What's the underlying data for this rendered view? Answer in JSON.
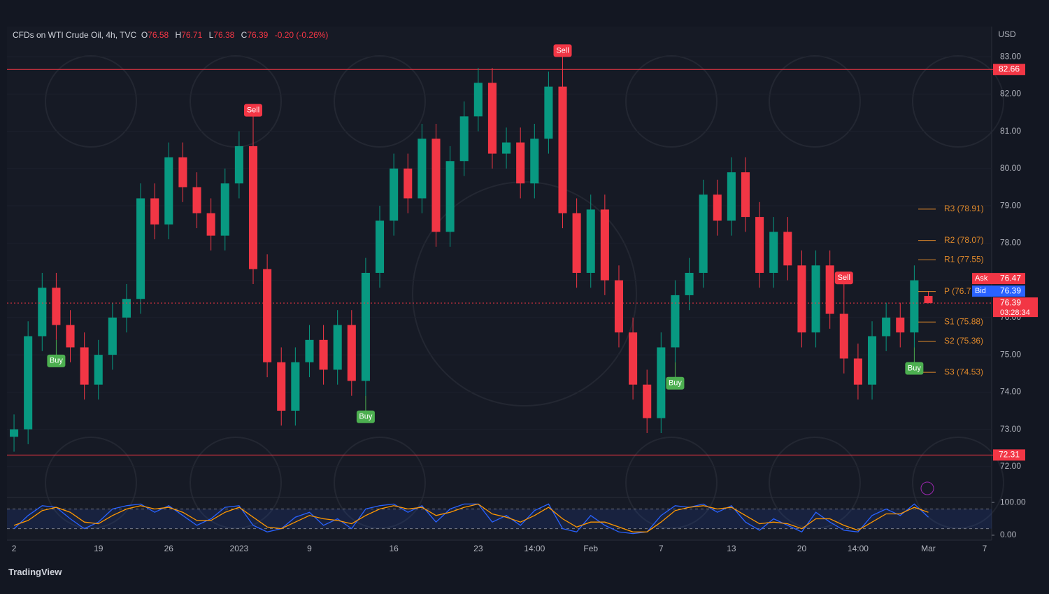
{
  "chart_data": {
    "type": "candlestick",
    "title": "CFDs on WTI Crude Oil, 4h, TVC",
    "ohlc_labels": [
      "O",
      "H",
      "L",
      "C"
    ],
    "change": "-0.20 (-0.26%)",
    "currency": "USD",
    "brand": "TradingView",
    "categories": [
      "2",
      null,
      null,
      null,
      null,
      null,
      "19",
      null,
      null,
      null,
      null,
      "26",
      null,
      null,
      null,
      null,
      "2023",
      null,
      null,
      null,
      null,
      "9",
      null,
      null,
      null,
      null,
      null,
      "16",
      null,
      null,
      null,
      null,
      null,
      "23",
      null,
      null,
      null,
      "14:00",
      null,
      null,
      null,
      "Feb",
      null,
      null,
      null,
      null,
      "7",
      null,
      null,
      null,
      null,
      "13",
      null,
      null,
      null,
      null,
      "20",
      null,
      null,
      null,
      "14:00",
      null,
      null,
      null,
      null,
      "Mar",
      null,
      null,
      null,
      "7"
    ],
    "open": [
      72.8,
      73.0,
      75.5,
      76.8,
      75.8,
      75.2,
      74.2,
      75.0,
      76.0,
      76.5,
      79.2,
      78.5,
      80.3,
      79.5,
      78.8,
      78.2,
      79.6,
      80.6,
      77.3,
      74.8,
      73.5,
      74.8,
      75.4,
      74.6,
      75.8,
      74.3,
      77.2,
      78.6,
      80.0,
      79.2,
      80.8,
      78.3,
      80.2,
      81.4,
      82.3,
      80.4,
      80.7,
      79.6,
      80.8,
      82.2,
      78.8,
      77.2,
      78.9,
      77.0,
      75.6,
      74.2,
      73.3,
      75.2,
      76.6,
      77.2,
      79.3,
      78.6,
      79.9,
      78.7,
      77.2,
      78.3,
      77.4,
      75.6,
      77.4,
      76.1,
      74.9,
      74.2,
      75.5,
      76.0,
      75.6,
      76.58,
      null,
      null,
      null,
      null
    ],
    "high": [
      73.4,
      75.9,
      77.2,
      77.2,
      76.2,
      75.6,
      75.4,
      76.4,
      76.9,
      79.6,
      79.6,
      80.7,
      80.7,
      79.9,
      79.2,
      80.0,
      81.0,
      81.0,
      77.7,
      75.2,
      75.2,
      75.8,
      75.8,
      76.2,
      76.2,
      77.6,
      79.0,
      80.4,
      80.4,
      81.2,
      81.2,
      80.6,
      81.8,
      82.7,
      82.7,
      81.1,
      81.1,
      81.2,
      82.6,
      82.6,
      79.2,
      79.3,
      79.3,
      77.4,
      76.0,
      74.6,
      75.6,
      77.0,
      77.6,
      79.7,
      79.7,
      80.3,
      80.3,
      79.1,
      78.7,
      78.7,
      77.8,
      77.8,
      77.8,
      76.5,
      75.3,
      75.9,
      76.4,
      76.4,
      77.4,
      76.71,
      null,
      null,
      null,
      null
    ],
    "low": [
      72.4,
      72.6,
      75.1,
      75.4,
      74.8,
      73.8,
      73.8,
      74.6,
      75.6,
      76.1,
      78.1,
      78.1,
      79.1,
      78.4,
      77.8,
      77.8,
      79.2,
      76.9,
      74.4,
      73.1,
      73.1,
      74.4,
      74.2,
      74.2,
      73.9,
      73.9,
      76.8,
      78.2,
      78.8,
      78.8,
      77.9,
      77.9,
      79.8,
      81.0,
      80.0,
      80.0,
      79.2,
      79.2,
      80.4,
      78.4,
      76.8,
      76.8,
      76.6,
      75.2,
      73.8,
      72.9,
      72.9,
      74.8,
      76.2,
      76.8,
      78.2,
      78.2,
      78.3,
      76.8,
      76.8,
      77.0,
      75.2,
      75.2,
      75.7,
      74.5,
      73.8,
      73.8,
      75.1,
      75.2,
      75.2,
      76.38,
      null,
      null,
      null,
      null
    ],
    "close": [
      73.0,
      75.5,
      76.8,
      75.8,
      75.2,
      74.2,
      75.0,
      76.0,
      76.5,
      79.2,
      78.5,
      80.3,
      79.5,
      78.8,
      78.2,
      79.6,
      80.6,
      77.3,
      74.8,
      73.5,
      74.8,
      75.4,
      74.6,
      75.8,
      74.3,
      77.2,
      78.6,
      80.0,
      79.2,
      80.8,
      78.3,
      80.2,
      81.4,
      82.3,
      80.4,
      80.7,
      79.6,
      80.8,
      82.2,
      78.8,
      77.2,
      78.9,
      77.0,
      75.6,
      74.2,
      73.3,
      75.2,
      76.6,
      77.2,
      79.3,
      78.6,
      79.9,
      78.7,
      77.2,
      78.3,
      77.4,
      75.6,
      77.4,
      76.1,
      74.9,
      74.2,
      75.5,
      76.0,
      75.6,
      77.0,
      76.39,
      null,
      null,
      null,
      null
    ],
    "up_color": "#089981",
    "down_color": "#f23645",
    "ylim": [
      71.19,
      83.81
    ],
    "yticks": [
      {
        "value": 72,
        "label": "72.00"
      },
      {
        "value": 73,
        "label": "73.00"
      },
      {
        "value": 74,
        "label": "74.00"
      },
      {
        "value": 75,
        "label": "75.00"
      },
      {
        "value": 76,
        "label": "76.00"
      },
      {
        "value": 77,
        "label": "77.00"
      },
      {
        "value": 78,
        "label": "78.00"
      },
      {
        "value": 79,
        "label": "79.00"
      },
      {
        "value": 80,
        "label": "80.00"
      },
      {
        "value": 81,
        "label": "81.00"
      },
      {
        "value": 82,
        "label": "82.00"
      },
      {
        "value": 83,
        "label": "83.00"
      }
    ],
    "levels": [
      82.66,
      72.31
    ],
    "pivots": [
      {
        "value": 78.91,
        "label": "R3 (78.91)"
      },
      {
        "value": 78.07,
        "label": "R2 (78.07)"
      },
      {
        "value": 77.55,
        "label": "R1 (77.55)"
      },
      {
        "value": 76.7,
        "label": "P (76.7"
      },
      {
        "value": 75.88,
        "label": "S1 (75.88)"
      },
      {
        "value": 75.36,
        "label": "S2 (75.36)"
      },
      {
        "value": 74.53,
        "label": "S3 (74.53)"
      }
    ],
    "ask": {
      "label": "Ask",
      "value": 76.47
    },
    "bid": {
      "label": "Bid",
      "value": 76.39
    },
    "countdown": "03:28:34",
    "signals": [
      {
        "label": "Buy",
        "candle": 3
      },
      {
        "label": "Sell",
        "candle": 17
      },
      {
        "label": "Buy",
        "candle": 25
      },
      {
        "label": "Sell",
        "candle": 39
      },
      {
        "label": "Buy",
        "candle": 47
      },
      {
        "label": "Sell",
        "candle": 59
      },
      {
        "label": "Buy",
        "candle": 64
      }
    ],
    "oscillator": {
      "ylim": [
        -15,
        113
      ],
      "yticks": [
        {
          "value": 100,
          "label": "100.00"
        },
        {
          "value": 0,
          "label": "0.00"
        }
      ],
      "bands": [
        20,
        80
      ],
      "series": [
        {
          "color": "#2962ff",
          "values": [
            20,
            60,
            90,
            85,
            50,
            20,
            40,
            80,
            90,
            95,
            70,
            90,
            60,
            30,
            50,
            85,
            90,
            30,
            10,
            20,
            55,
            70,
            30,
            50,
            20,
            80,
            90,
            95,
            70,
            90,
            40,
            80,
            95,
            95,
            40,
            60,
            30,
            75,
            95,
            20,
            10,
            60,
            30,
            10,
            5,
            10,
            60,
            90,
            85,
            95,
            70,
            90,
            40,
            15,
            50,
            30,
            10,
            70,
            40,
            15,
            10,
            60,
            80,
            60,
            95,
            55,
            null,
            null,
            null,
            null
          ]
        },
        {
          "color": "#ff9800",
          "values": [
            30,
            45,
            75,
            85,
            70,
            40,
            35,
            60,
            80,
            90,
            80,
            85,
            70,
            45,
            45,
            70,
            85,
            55,
            25,
            20,
            40,
            60,
            50,
            45,
            35,
            60,
            80,
            90,
            80,
            85,
            60,
            70,
            85,
            95,
            65,
            55,
            40,
            60,
            85,
            50,
            25,
            40,
            40,
            25,
            10,
            10,
            40,
            75,
            85,
            90,
            80,
            85,
            60,
            35,
            40,
            35,
            20,
            50,
            50,
            30,
            15,
            40,
            65,
            65,
            85,
            70,
            null,
            null,
            null,
            null
          ]
        }
      ]
    }
  }
}
